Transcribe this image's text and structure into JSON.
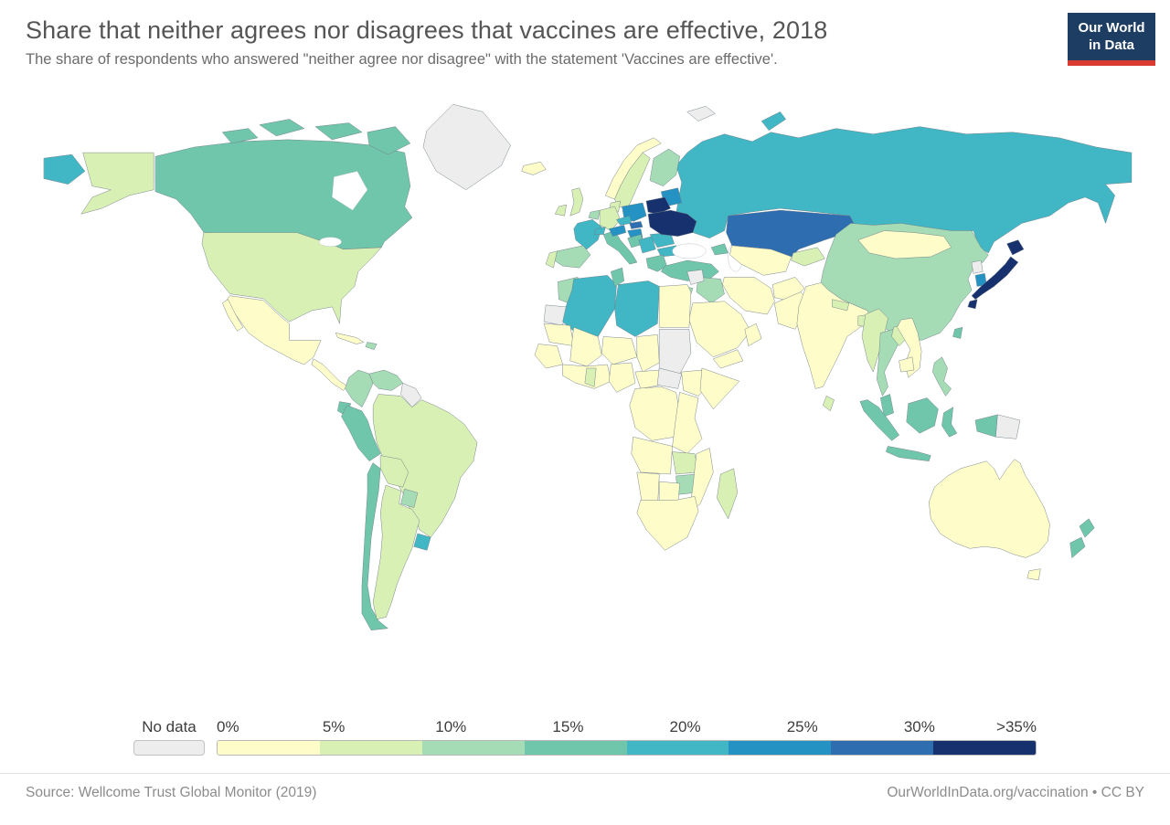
{
  "header": {
    "title": "Share that neither agrees nor disagrees that vaccines are effective, 2018",
    "subtitle": "The share of respondents who answered \"neither agree nor disagree\" with the statement 'Vaccines are effective'.",
    "logo": {
      "line1": "Our World",
      "line2": "in Data",
      "bg": "#1d3d63",
      "accent": "#d93a32"
    }
  },
  "legend": {
    "no_data_label": "No data",
    "no_data_color": "#ededed",
    "tick_labels": [
      "0%",
      "5%",
      "10%",
      "15%",
      "20%",
      "25%",
      "30%",
      ">35%"
    ],
    "colors": [
      "#fefcc8",
      "#d9f0b4",
      "#a5dcb6",
      "#70c6ab",
      "#41b6c4",
      "#2592c4",
      "#2f6db1",
      "#17316e"
    ]
  },
  "footer": {
    "source": "Source: Wellcome Trust Global Monitor (2019)",
    "credit": "OurWorldInData.org/vaccination • CC BY"
  },
  "chart_data": {
    "type": "choropleth",
    "title": "Share that neither agrees nor disagrees that vaccines are effective",
    "year": "2018",
    "unit": "% of respondents",
    "bucket_labels": [
      "No data",
      "0-5%",
      "5-10%",
      "10-15%",
      "15-20%",
      "20-25%",
      "25-30%",
      "30-35%",
      ">35%"
    ],
    "regions": {
      "russia": 5,
      "svalbard": 0,
      "greenland": 0,
      "iceland": 1,
      "canada": 4,
      "united-states": 2,
      "mexico": 1,
      "central-america": 1,
      "cuba": 1,
      "hispaniola": 3,
      "colombia": 3,
      "venezuela": 3,
      "guyanas": 0,
      "ecuador": 4,
      "peru": 4,
      "brazil": 2,
      "bolivia": 2,
      "paraguay": 3,
      "uruguay": 5,
      "argentina": 2,
      "chile": 4,
      "united-kingdom": 2,
      "ireland": 2,
      "norway": 1,
      "sweden": 2,
      "finland": 3,
      "denmark": 2,
      "baltics": 6,
      "poland": 6,
      "germany": 2,
      "netherlands": 3,
      "france": 5,
      "spain": 3,
      "portugal": 2,
      "switzerland": 5,
      "italy": 4,
      "austria": 6,
      "czechia": 5,
      "slovakia": 7,
      "hungary": 6,
      "belarus": 8,
      "ukraine": 8,
      "romania": 5,
      "bulgaria": 5,
      "serbia": 5,
      "croatia-bosnia": 4,
      "greece": 4,
      "turkey": 4,
      "caucasus": 4,
      "kazakhstan": 7,
      "central-asia": 1,
      "kyrgyzstan-tajikistan": 2,
      "afghanistan": 1,
      "pakistan": 1,
      "india": 1,
      "nepal": 2,
      "bangladesh": 2,
      "sri-lanka": 2,
      "china": 3,
      "mongolia": 1,
      "north-korea": 0,
      "south-korea": 6,
      "japan": 8,
      "taiwan": 4,
      "myanmar": 2,
      "thailand": 3,
      "laos": 2,
      "vietnam": 1,
      "cambodia": 1,
      "malaysia": 4,
      "indonesia": 4,
      "philippines": 3,
      "papua-new-guinea": 0,
      "australia": 1,
      "new-zealand": 4,
      "morocco": 3,
      "western-sahara": 0,
      "algeria": 5,
      "tunisia": 4,
      "libya": 5,
      "egypt": 1,
      "mauritania": 1,
      "mali": 1,
      "niger": 1,
      "chad": 1,
      "sudan": 0,
      "south-sudan": 0,
      "senegal-guinea": 1,
      "west-africa": 1,
      "ghana": 2,
      "nigeria": 1,
      "cameroon-car": 1,
      "ethiopia": 1,
      "somalia": 1,
      "drc": 1,
      "east-africa": 1,
      "angola": 1,
      "zambia": 2,
      "zimbabwe": 3,
      "mozambique": 1,
      "namibia": 1,
      "botswana": 1,
      "south-africa": 1,
      "madagascar": 2,
      "syria": 0,
      "jordan-israel": 3,
      "iraq": 3,
      "iran": 1,
      "saudi-arabia": 1,
      "yemen": 1,
      "oman": 1
    }
  }
}
